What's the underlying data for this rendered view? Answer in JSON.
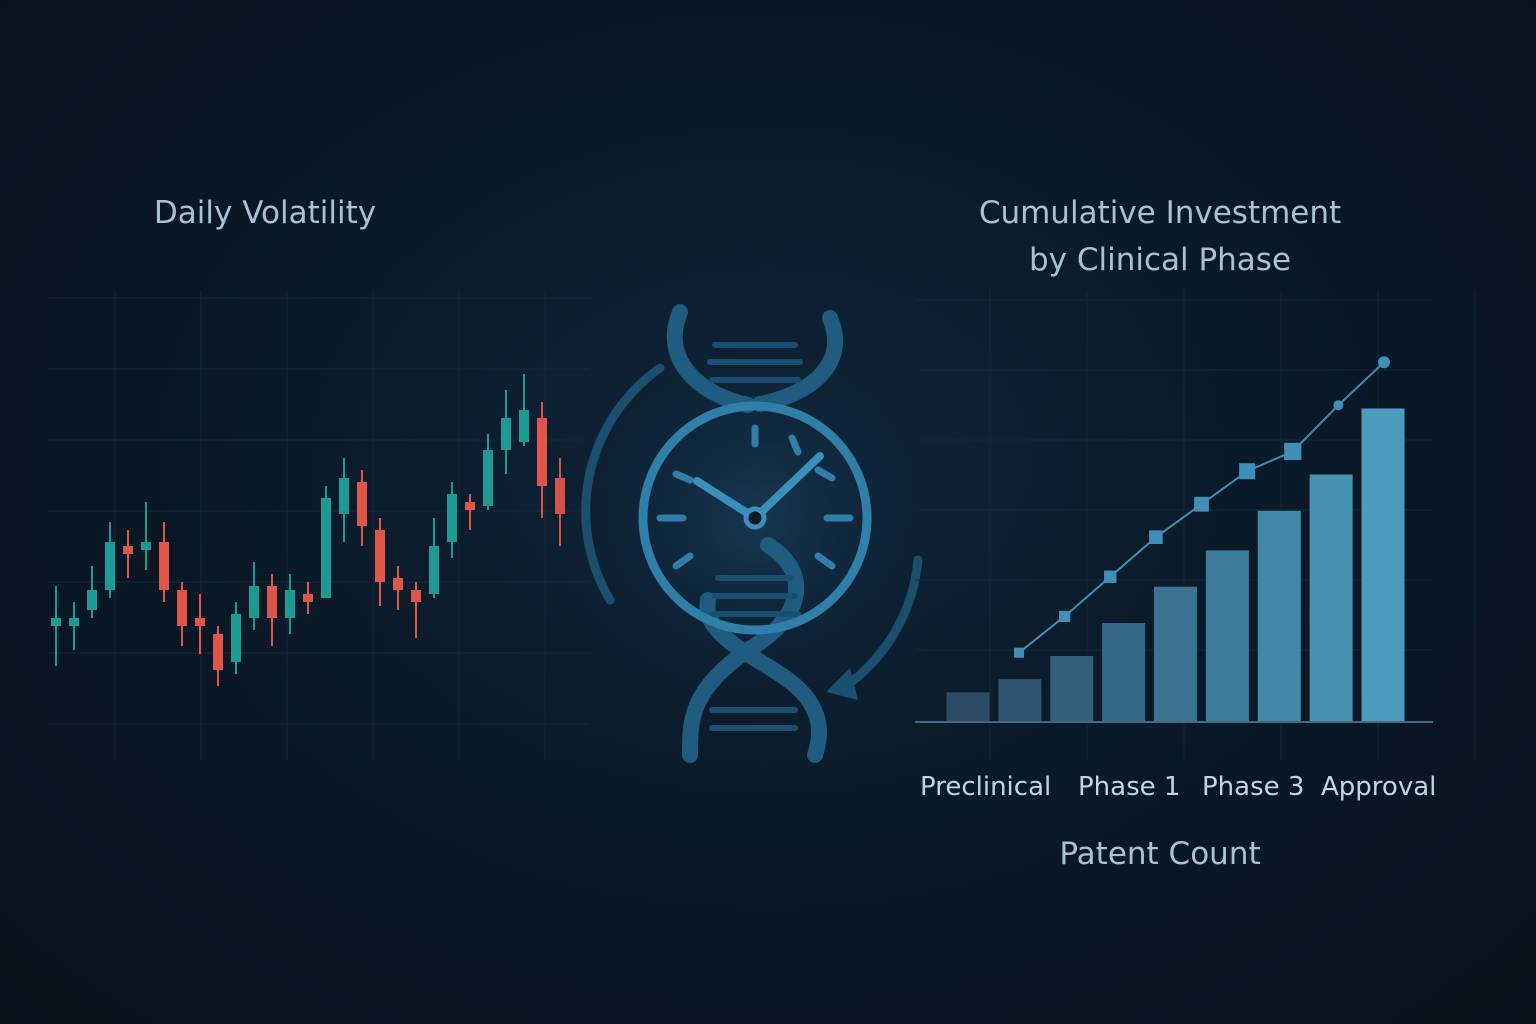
{
  "chart_data": [
    {
      "type": "candlestick",
      "title": "Daily Volatility",
      "xlabel": "",
      "ylabel": "",
      "grid": true,
      "ylim": [
        0,
        100
      ],
      "colors": {
        "up": "#1f9a93",
        "down": "#e0564a"
      },
      "candles": [
        {
          "open": 24,
          "close": 26,
          "high": 34,
          "low": 14
        },
        {
          "open": 24,
          "close": 26,
          "high": 30,
          "low": 18
        },
        {
          "open": 28,
          "close": 33,
          "high": 39,
          "low": 26
        },
        {
          "open": 33,
          "close": 45,
          "high": 50,
          "low": 31
        },
        {
          "open": 44,
          "close": 42,
          "high": 48,
          "low": 36
        },
        {
          "open": 43,
          "close": 45,
          "high": 55,
          "low": 38
        },
        {
          "open": 45,
          "close": 33,
          "high": 50,
          "low": 30
        },
        {
          "open": 33,
          "close": 24,
          "high": 35,
          "low": 19
        },
        {
          "open": 26,
          "close": 24,
          "high": 32,
          "low": 17
        },
        {
          "open": 22,
          "close": 13,
          "high": 24,
          "low": 9
        },
        {
          "open": 15,
          "close": 27,
          "high": 30,
          "low": 12
        },
        {
          "open": 26,
          "close": 34,
          "high": 40,
          "low": 23
        },
        {
          "open": 34,
          "close": 26,
          "high": 37,
          "low": 19
        },
        {
          "open": 26,
          "close": 33,
          "high": 37,
          "low": 22
        },
        {
          "open": 32,
          "close": 30,
          "high": 35,
          "low": 27
        },
        {
          "open": 31,
          "close": 56,
          "high": 59,
          "low": 31
        },
        {
          "open": 52,
          "close": 61,
          "high": 66,
          "low": 45
        },
        {
          "open": 60,
          "close": 49,
          "high": 63,
          "low": 44
        },
        {
          "open": 48,
          "close": 35,
          "high": 51,
          "low": 29
        },
        {
          "open": 36,
          "close": 33,
          "high": 39,
          "low": 28
        },
        {
          "open": 33,
          "close": 30,
          "high": 35,
          "low": 21
        },
        {
          "open": 32,
          "close": 44,
          "high": 51,
          "low": 31
        },
        {
          "open": 45,
          "close": 57,
          "high": 60,
          "low": 41
        },
        {
          "open": 55,
          "close": 53,
          "high": 57,
          "low": 48
        },
        {
          "open": 54,
          "close": 68,
          "high": 72,
          "low": 53
        },
        {
          "open": 68,
          "close": 76,
          "high": 83,
          "low": 62
        },
        {
          "open": 70,
          "close": 78,
          "high": 87,
          "low": 69
        },
        {
          "open": 76,
          "close": 59,
          "high": 80,
          "low": 51
        },
        {
          "open": 61,
          "close": 52,
          "high": 66,
          "low": 44
        }
      ]
    },
    {
      "type": "bar",
      "title": "Cumulative Investment by Clinical Phase",
      "title_lines": [
        "Cumulative Investment",
        "by Clinical Phase"
      ],
      "xlabel": "Patent Count",
      "ylabel": "",
      "grid": true,
      "ylim": [
        0,
        100
      ],
      "tick_labels": [
        "Preclinical",
        "Phase 1",
        "Phase 3",
        "Approval"
      ],
      "values": [
        9,
        13,
        20,
        30,
        41,
        52,
        64,
        75,
        95
      ],
      "line_values": [
        21,
        32,
        44,
        56,
        66,
        76,
        82,
        96,
        109
      ],
      "colors": {
        "bar_low": "#2a4a66",
        "bar_high": "#4c9cbc",
        "line": "#3f8fb8",
        "axis": "#3f6a89"
      }
    }
  ],
  "center_icon": "dna-clock-icon"
}
